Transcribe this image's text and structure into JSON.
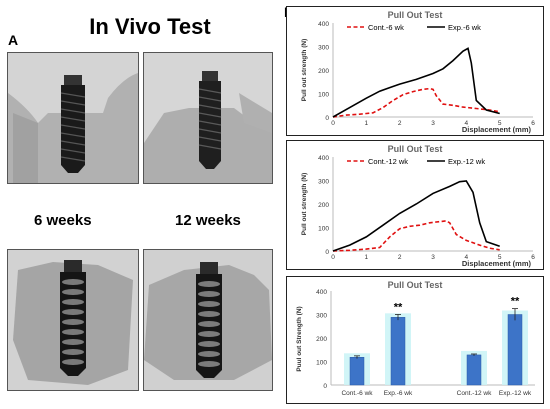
{
  "panel_a": {
    "letter": "A",
    "title": "In Vivo Test",
    "label_6w": "6 weeks",
    "label_12w": "12 weeks"
  },
  "panel_b": {
    "letter": "B"
  },
  "colors": {
    "control": "#e01010",
    "experimental": "#000000",
    "bar_fill": "#3d74c8",
    "bar_glow": "#c9f3f6"
  },
  "chart_data": [
    {
      "type": "line",
      "title": "Pull Out Test",
      "xlabel": "Displacement (mm)",
      "ylabel": "Pull out strength (N)",
      "xlim": [
        0,
        6
      ],
      "ylim": [
        0,
        400
      ],
      "xticks": [
        0,
        1,
        2,
        3,
        4,
        5,
        6
      ],
      "yticks": [
        0,
        100,
        200,
        300,
        400
      ],
      "legend_position": "top-center",
      "series": [
        {
          "name": "Cont.-6 wk",
          "style": "dashed",
          "color": "#e01010",
          "x": [
            0,
            0.4,
            0.8,
            1.2,
            1.5,
            1.8,
            2.1,
            2.4,
            2.7,
            2.9,
            3.0,
            3.1,
            3.3,
            3.6,
            3.9,
            4.3,
            4.7,
            5.0
          ],
          "y": [
            0,
            8,
            12,
            18,
            40,
            70,
            95,
            108,
            118,
            121,
            118,
            90,
            55,
            50,
            42,
            36,
            30,
            22
          ]
        },
        {
          "name": "Exp.-6 wk",
          "style": "solid",
          "color": "#000000",
          "x": [
            0,
            0.5,
            1.0,
            1.4,
            1.7,
            2.0,
            2.5,
            3.0,
            3.3,
            3.6,
            3.9,
            4.05,
            4.15,
            4.3,
            4.6,
            5.0
          ],
          "y": [
            0,
            40,
            80,
            110,
            125,
            140,
            160,
            185,
            205,
            240,
            280,
            292,
            230,
            70,
            30,
            15
          ]
        }
      ]
    },
    {
      "type": "line",
      "title": "Pull Out Test",
      "xlabel": "Displacement (mm)",
      "ylabel": "Pull out strength (N)",
      "xlim": [
        0,
        6
      ],
      "ylim": [
        0,
        400
      ],
      "xticks": [
        0,
        1,
        2,
        3,
        4,
        5,
        6
      ],
      "yticks": [
        0,
        100,
        200,
        300,
        400
      ],
      "legend_position": "top-center",
      "series": [
        {
          "name": "Cont.-12 wk",
          "style": "dashed",
          "color": "#e01010",
          "x": [
            0,
            0.5,
            1.0,
            1.4,
            1.7,
            2.0,
            2.3,
            2.6,
            2.9,
            3.2,
            3.4,
            3.5,
            3.7,
            4.0,
            4.4,
            4.7,
            5.0
          ],
          "y": [
            0,
            3,
            8,
            15,
            60,
            95,
            105,
            110,
            120,
            125,
            128,
            120,
            70,
            45,
            25,
            12,
            5
          ]
        },
        {
          "name": "Exp.-12 wk",
          "style": "solid",
          "color": "#000000",
          "x": [
            0,
            0.5,
            1.0,
            1.5,
            2.0,
            2.5,
            3.0,
            3.5,
            3.8,
            4.0,
            4.2,
            4.4,
            4.6,
            5.0
          ],
          "y": [
            0,
            25,
            60,
            110,
            160,
            200,
            245,
            275,
            295,
            298,
            250,
            120,
            40,
            20
          ]
        }
      ]
    },
    {
      "type": "bar",
      "title": "Pull Out Test",
      "ylabel": "Puul out Strength (N)",
      "ylim": [
        0,
        400
      ],
      "yticks": [
        0,
        100,
        200,
        300,
        400
      ],
      "categories": [
        "Cont.-6 wk",
        "Exp.-6 wk",
        "Cont.-12 wk",
        "Exp.-12 wk"
      ],
      "values": [
        118,
        288,
        128,
        300
      ],
      "errors": [
        6,
        12,
        4,
        25
      ],
      "annotations": [
        "",
        "**",
        "",
        "**"
      ]
    }
  ]
}
